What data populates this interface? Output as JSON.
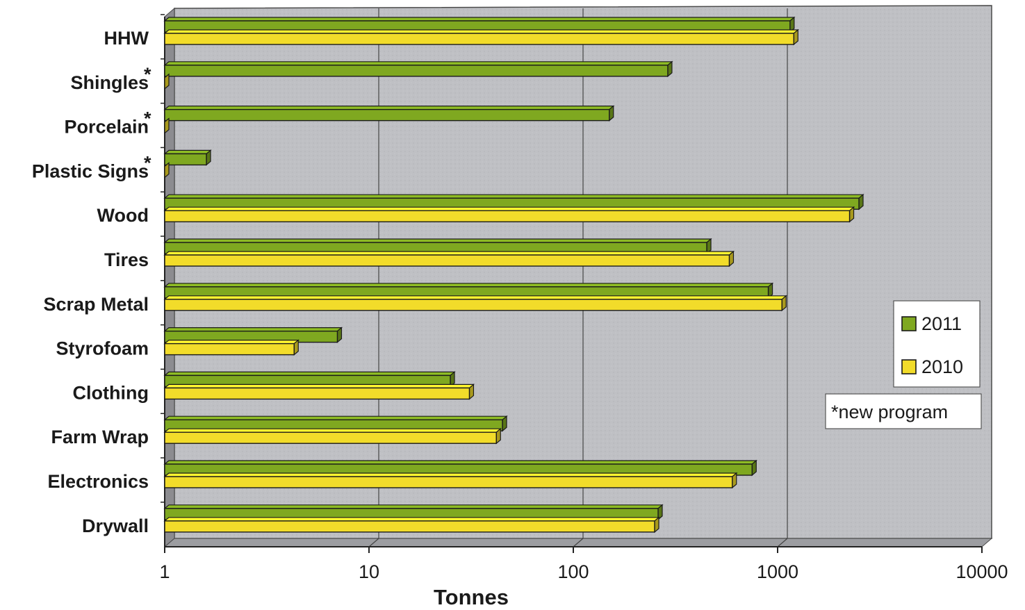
{
  "chart_data": {
    "type": "bar",
    "orientation": "horizontal",
    "three_d": true,
    "x_scale": "log",
    "xlim": [
      1,
      10000
    ],
    "x_ticks": [
      "1",
      "10",
      "100",
      "1000",
      "10000"
    ],
    "xlabel": "Tonnes",
    "ylabel": "",
    "title": "",
    "grid": true,
    "categories": [
      "HHW",
      "Shingles",
      "Porcelain",
      "Plastic Signs",
      "Wood",
      "Tires",
      "Scrap Metal",
      "Styrofoam",
      "Clothing",
      "Farm Wrap",
      "Electronics",
      "Drywall"
    ],
    "category_markers": [
      "",
      "*",
      "*",
      "*",
      "",
      "",
      "",
      "",
      "",
      "",
      "",
      ""
    ],
    "series": [
      {
        "name": "2011",
        "color": "#7fa820",
        "values": [
          1150,
          290,
          150,
          1.6,
          2500,
          450,
          900,
          7,
          25,
          45,
          750,
          260
        ]
      },
      {
        "name": "2010",
        "color": "#f2dc2a",
        "values": [
          1200,
          0,
          0,
          0,
          2250,
          580,
          1050,
          4.3,
          31,
          42,
          600,
          250
        ]
      }
    ],
    "legend": {
      "position": "right",
      "entries": [
        "2011",
        "2010"
      ]
    },
    "annotation": "*new program"
  }
}
